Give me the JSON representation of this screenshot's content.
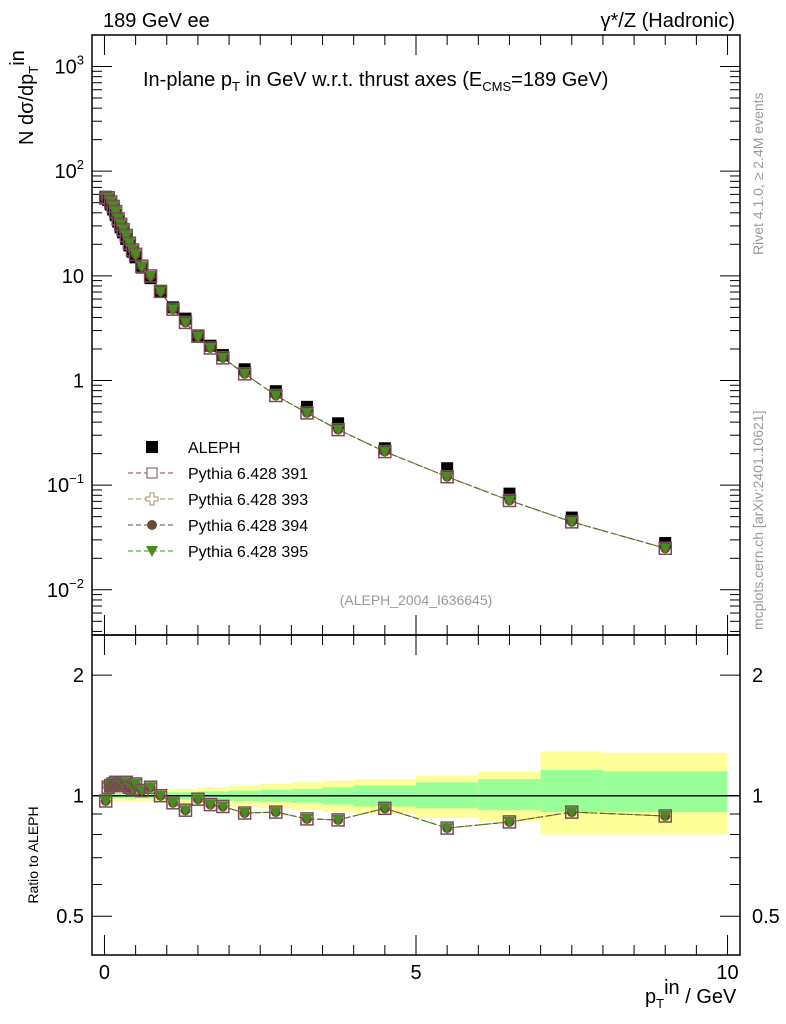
{
  "chart_data": [
    {
      "type": "scatter",
      "title": "In-plane p_T in GeV w.r.t. thrust axes (E_CMS=189 GeV)",
      "title_parts": {
        "main": "In-plane p",
        "sub": "T",
        "mid": " in GeV w.r.t. thrust axes (E",
        "sub2": "CMS",
        "end": "=189 GeV)"
      },
      "top_left": "189 GeV ee",
      "top_right": "γ*/Z (Hadronic)",
      "ylabel": {
        "a": "N  dσ/dp",
        "sub": "T",
        "sup": "in"
      },
      "yscale": "log",
      "ylim": [
        0.0037,
        2000
      ],
      "xlim": [
        -0.2,
        10.2
      ],
      "ytick_labels": [
        {
          "v": 1000,
          "base": "10",
          "exp": "3"
        },
        {
          "v": 100,
          "base": "10",
          "exp": "2"
        },
        {
          "v": 10,
          "base": "10",
          "exp": ""
        },
        {
          "v": 1,
          "base": "1",
          "exp": ""
        },
        {
          "v": 0.1,
          "base": "10",
          "exp": "−1"
        },
        {
          "v": 0.01,
          "base": "10",
          "exp": "−2"
        }
      ],
      "x": [
        0.02,
        0.06,
        0.1,
        0.14,
        0.18,
        0.22,
        0.26,
        0.3,
        0.35,
        0.4,
        0.45,
        0.5,
        0.6,
        0.74,
        0.9,
        1.1,
        1.3,
        1.5,
        1.7,
        1.9,
        2.25,
        2.75,
        3.25,
        3.75,
        4.5,
        5.5,
        6.5,
        7.5,
        9.0
      ],
      "series": [
        {
          "name": "ALEPH",
          "values": [
            57,
            53,
            48,
            43,
            38,
            33,
            29,
            26,
            22.5,
            19.5,
            17,
            15,
            12,
            9.5,
            7.1,
            5.0,
            3.9,
            2.7,
            2.15,
            1.75,
            1.28,
            0.79,
            0.56,
            0.39,
            0.225,
            0.145,
            0.083,
            0.049,
            0.028
          ]
        }
      ],
      "legend": [
        "ALEPH",
        "Pythia 6.428 391",
        "Pythia 6.428 393",
        "Pythia 6.428 394",
        "Pythia 6.428 395"
      ],
      "legend_placement": "bottom-left",
      "watermark": "(ALEPH_2004_I636645)",
      "side_text": "mcplots.cern.ch [arXiv:2401.10621]",
      "rivet_text": "Rivet 4.1.0, ≥ 2.4M events",
      "colors": {
        "s391": "#7b4a5a",
        "s393": "#a89060",
        "s394": "#6b4a30",
        "s395": "#4a8a20",
        "data": "#000000"
      }
    },
    {
      "type": "scatter",
      "ylabel": "Ratio to ALEPH",
      "yscale": "log",
      "ylim": [
        0.4,
        2.52
      ],
      "ytick_labels": [
        "2",
        "1",
        "0.5"
      ],
      "ytick_values": [
        2,
        1,
        0.5
      ],
      "xlabel": {
        "a": "p",
        "sub": "T",
        "sup": "in",
        "b": " / GeV"
      },
      "xtick_labels": [
        "0",
        "5",
        "10"
      ],
      "ratio": [
        0.97,
        1.05,
        1.06,
        1.07,
        1.08,
        1.06,
        1.07,
        1.06,
        1.08,
        1.05,
        1.04,
        1.07,
        1.03,
        1.05,
        1.0,
        0.96,
        0.92,
        0.98,
        0.95,
        0.94,
        0.905,
        0.91,
        0.875,
        0.87,
        0.93,
        0.83,
        0.86,
        0.91,
        0.89
      ],
      "bands": {
        "edges": [
          0,
          0.5,
          1,
          1.5,
          2,
          2.5,
          3,
          3.5,
          4,
          5,
          6,
          7,
          8,
          10
        ],
        "yellow_lo": [
          0.97,
          0.97,
          0.96,
          0.95,
          0.94,
          0.93,
          0.92,
          0.91,
          0.9,
          0.88,
          0.86,
          0.8,
          0.8
        ],
        "yellow_hi": [
          1.03,
          1.03,
          1.04,
          1.05,
          1.06,
          1.07,
          1.08,
          1.09,
          1.1,
          1.12,
          1.15,
          1.29,
          1.28
        ],
        "green_lo": [
          0.985,
          0.985,
          0.98,
          0.975,
          0.97,
          0.965,
          0.96,
          0.95,
          0.94,
          0.93,
          0.92,
          0.91,
          0.91
        ],
        "green_hi": [
          1.015,
          1.015,
          1.02,
          1.025,
          1.03,
          1.035,
          1.04,
          1.05,
          1.06,
          1.08,
          1.1,
          1.16,
          1.15
        ]
      }
    }
  ]
}
